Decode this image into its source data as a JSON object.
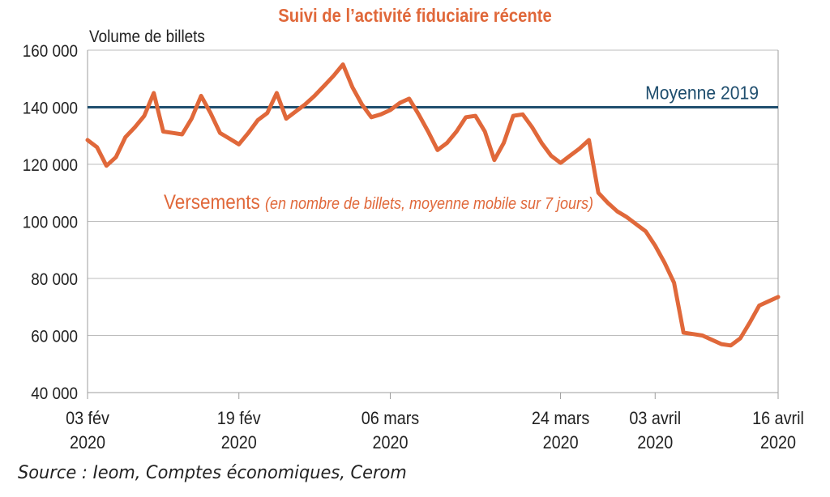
{
  "chart_data": {
    "type": "line",
    "title": "Suivi de l’activité fiduciaire récente",
    "ylabel": "Volume de billets",
    "ylim": [
      40000,
      160000
    ],
    "yticks": [
      40000,
      60000,
      80000,
      100000,
      120000,
      140000,
      160000
    ],
    "ytick_labels": [
      "40 000",
      "60 000",
      "80 000",
      "100 000",
      "120 000",
      "140 000",
      "160 000"
    ],
    "xtick_labels": [
      {
        "day": 0,
        "line1": "03 fév",
        "line2": "2020"
      },
      {
        "day": 16,
        "line1": "19 fév",
        "line2": "2020"
      },
      {
        "day": 32,
        "line1": "06 mars",
        "line2": "2020"
      },
      {
        "day": 50,
        "line1": "24 mars",
        "line2": "2020"
      },
      {
        "day": 60,
        "line1": "03 avril",
        "line2": "2020"
      },
      {
        "day": 73,
        "line1": "16 avril",
        "line2": "2020"
      }
    ],
    "grid": true,
    "reference_line": {
      "label": "Moyenne 2019",
      "value": 140000,
      "color": "#1f4e6e"
    },
    "series": [
      {
        "name": "Versements",
        "note": "(en nombre de billets, moyenne mobile sur 7 jours)",
        "color": "#e0683a",
        "x": [
          0,
          1,
          2,
          3,
          4,
          5,
          6,
          7,
          8,
          9,
          10,
          11,
          12,
          13,
          14,
          15,
          16,
          17,
          18,
          19,
          20,
          21,
          22,
          23,
          24,
          25,
          26,
          27,
          28,
          29,
          30,
          31,
          32,
          33,
          34,
          35,
          36,
          37,
          38,
          39,
          40,
          41,
          42,
          43,
          44,
          45,
          46,
          47,
          48,
          49,
          50,
          51,
          52,
          53,
          54,
          55,
          56,
          57,
          58,
          59,
          60,
          61,
          62,
          63,
          64,
          65,
          66,
          67,
          68,
          69,
          70,
          71,
          72,
          73
        ],
        "values": [
          128500,
          126000,
          119500,
          122500,
          129500,
          133000,
          137000,
          145000,
          131500,
          131000,
          130500,
          136000,
          144000,
          138000,
          131000,
          129000,
          127000,
          131000,
          135500,
          138000,
          145000,
          136000,
          138500,
          141000,
          144000,
          147500,
          151000,
          155000,
          147000,
          141000,
          136500,
          137500,
          139000,
          141500,
          143000,
          137500,
          131500,
          125000,
          127500,
          131500,
          136500,
          137000,
          131500,
          121500,
          127500,
          137000,
          137500,
          133000,
          127500,
          123000,
          120500,
          123000,
          125500,
          128500,
          110000,
          106500,
          103500,
          101500,
          99000,
          96500,
          91500,
          85500,
          78500,
          61000,
          60500,
          60000,
          58500,
          57000,
          56500,
          59000,
          64500,
          70500,
          72000,
          73500
        ]
      }
    ]
  },
  "footer": {
    "source": "Source : Ieom, Comptes économiques, Cerom"
  }
}
